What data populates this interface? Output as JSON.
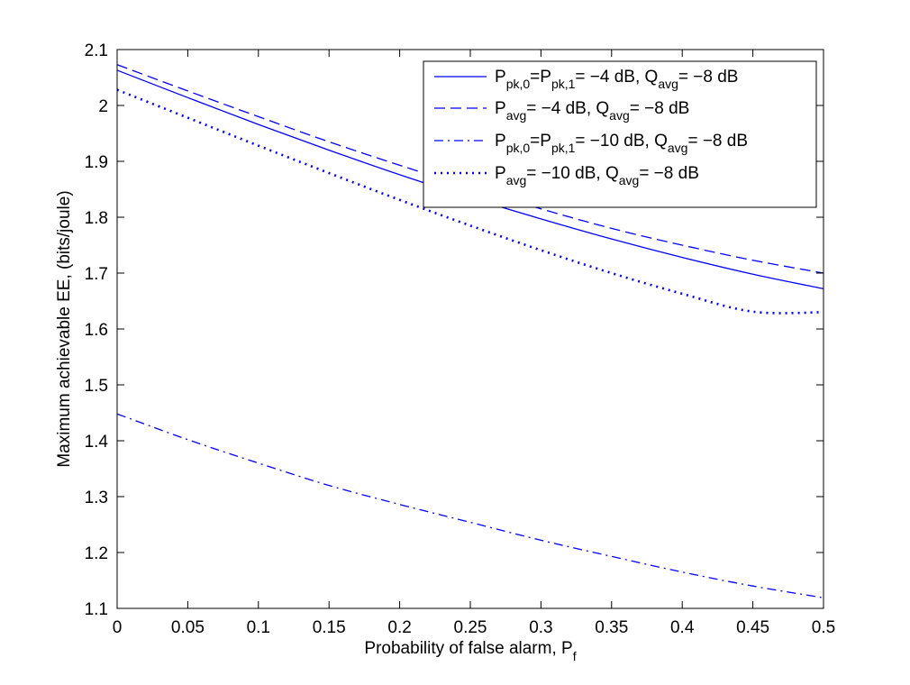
{
  "chart_data": {
    "type": "line",
    "title": "",
    "xlabel": "Probability of false alarm, P",
    "xlabel_subscript": "f",
    "ylabel": "Maximum achievable EE, (bits/joule)",
    "xlim": [
      0,
      0.5
    ],
    "ylim": [
      1.1,
      2.1
    ],
    "xticks": [
      0,
      0.05,
      0.1,
      0.15,
      0.2,
      0.25,
      0.3,
      0.35,
      0.4,
      0.45,
      0.5
    ],
    "xtick_labels": [
      "0",
      "0.05",
      "0.1",
      "0.15",
      "0.2",
      "0.25",
      "0.3",
      "0.35",
      "0.4",
      "0.45",
      "0.5"
    ],
    "yticks": [
      1.1,
      1.2,
      1.3,
      1.4,
      1.5,
      1.6,
      1.7,
      1.8,
      1.9,
      2.0,
      2.1
    ],
    "ytick_labels": [
      "1.1",
      "1.2",
      "1.3",
      "1.4",
      "1.5",
      "1.6",
      "1.7",
      "1.8",
      "1.9",
      "2",
      "2.1"
    ],
    "grid": false,
    "legend_position": "top-right",
    "x": [
      0,
      0.05,
      0.1,
      0.15,
      0.2,
      0.25,
      0.3,
      0.35,
      0.4,
      0.45,
      0.5
    ],
    "series": [
      {
        "style": "solid",
        "color": "#0000ff",
        "values": [
          2.063,
          2.014,
          1.966,
          1.92,
          1.876,
          1.835,
          1.797,
          1.761,
          1.728,
          1.698,
          1.672
        ],
        "legend": [
          {
            "t": "P",
            "k": "n"
          },
          {
            "t": "pk,0",
            "k": "s"
          },
          {
            "t": "=P",
            "k": "n"
          },
          {
            "t": "pk,1",
            "k": "s"
          },
          {
            "t": "= −4 dB, Q",
            "k": "n"
          },
          {
            "t": "avg",
            "k": "s"
          },
          {
            "t": "= −8 dB",
            "k": "n"
          }
        ]
      },
      {
        "style": "dashed",
        "color": "#0000ff",
        "values": [
          2.073,
          2.026,
          1.98,
          1.935,
          1.893,
          1.853,
          1.815,
          1.78,
          1.75,
          1.723,
          1.7
        ],
        "legend": [
          {
            "t": "P",
            "k": "n"
          },
          {
            "t": "avg",
            "k": "s"
          },
          {
            "t": "= −4 dB, Q",
            "k": "n"
          },
          {
            "t": "avg",
            "k": "s"
          },
          {
            "t": "= −8 dB",
            "k": "n"
          }
        ]
      },
      {
        "style": "dashdot",
        "color": "#0000ff",
        "values": [
          1.448,
          1.402,
          1.36,
          1.32,
          1.286,
          1.254,
          1.222,
          1.193,
          1.165,
          1.14,
          1.119
        ],
        "legend": [
          {
            "t": "P",
            "k": "n"
          },
          {
            "t": "pk,0",
            "k": "s"
          },
          {
            "t": "=P",
            "k": "n"
          },
          {
            "t": "pk,1",
            "k": "s"
          },
          {
            "t": "= −10 dB, Q",
            "k": "n"
          },
          {
            "t": "avg",
            "k": "s"
          },
          {
            "t": "= −8 dB",
            "k": "n"
          }
        ]
      },
      {
        "style": "dotted",
        "color": "#0000ff",
        "values": [
          2.028,
          1.978,
          1.928,
          1.879,
          1.831,
          1.785,
          1.741,
          1.7,
          1.663,
          1.631,
          1.63
        ],
        "legend": [
          {
            "t": "P",
            "k": "n"
          },
          {
            "t": "avg",
            "k": "s"
          },
          {
            "t": "= −10 dB, Q",
            "k": "n"
          },
          {
            "t": "avg",
            "k": "s"
          },
          {
            "t": "= −8 dB",
            "k": "n"
          }
        ]
      }
    ]
  }
}
